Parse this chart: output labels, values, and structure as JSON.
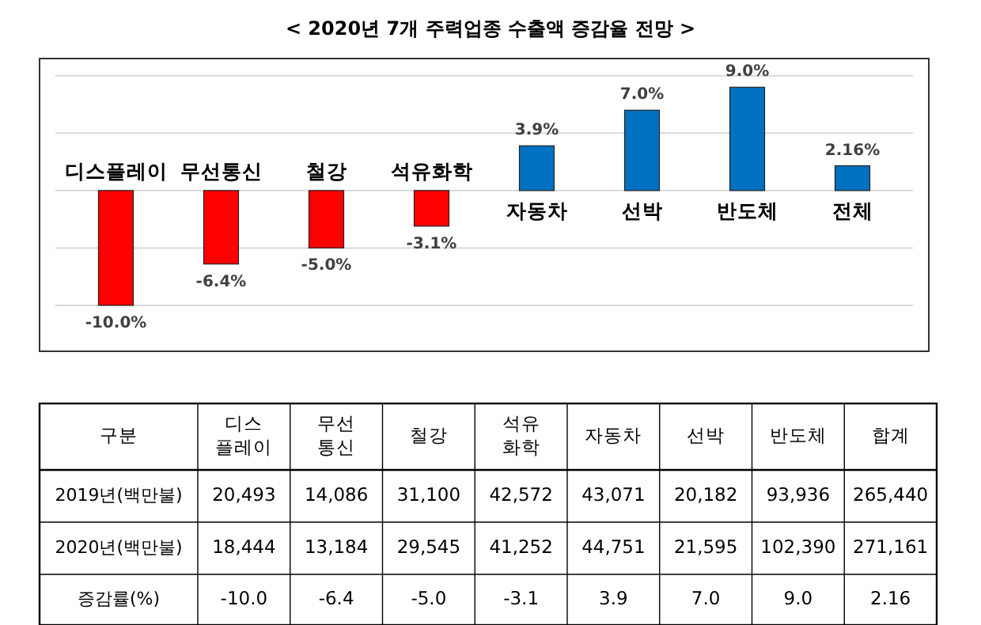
{
  "chart_data": [
    {
      "type": "bar",
      "title": "< 2020년 7개 주력업종 수출액 증감율 전망 >",
      "categories": [
        "디스플레이",
        "무선통신",
        "철강",
        "석유화학",
        "자동차",
        "선박",
        "반도체",
        "전체"
      ],
      "values": [
        -10.0,
        -6.4,
        -5.0,
        -3.1,
        3.9,
        7.0,
        9.0,
        2.16
      ],
      "value_labels": [
        "-10.0%",
        "-6.4%",
        "-5.0%",
        "-3.1%",
        "3.9%",
        "7.0%",
        "9.0%",
        "2.16%"
      ],
      "colors": [
        "#ff0000",
        "#ff0000",
        "#ff0000",
        "#ff0000",
        "#0070c0",
        "#0070c0",
        "#0070c0",
        "#0070c0"
      ],
      "ylim": [
        -14,
        11.5
      ],
      "yticks": [
        {
          "value": -10,
          "label": null
        },
        {
          "value": -5,
          "label": null
        },
        {
          "value": 0,
          "label": null
        },
        {
          "value": 5,
          "label": null
        },
        {
          "value": 10,
          "label": null
        }
      ],
      "grid": "y",
      "tick_labels": "x"
    },
    {
      "type": "other",
      "annotations": [
        "구분"
      ],
      "categories": [
        "디스\n플레이",
        "무선\n통신",
        "철강",
        "석유\n화학",
        "자동차",
        "선박",
        "반도체",
        "합계"
      ],
      "y_categories": [
        "2019년(백만불)",
        "2020년(백만불)",
        "증감률(%)"
      ],
      "cell_labels": [
        [
          "20,493",
          "14,086",
          "31,100",
          "42,572",
          "43,071",
          "20,182",
          "93,936",
          "265,440"
        ],
        [
          "18,444",
          "13,184",
          "29,545",
          "41,252",
          "44,751",
          "21,595",
          "102,390",
          "271,161"
        ],
        [
          "-10.0",
          "-6.4",
          "-5.0",
          "-3.1",
          "3.9",
          "7.0",
          "9.0",
          "2.16"
        ]
      ]
    }
  ]
}
